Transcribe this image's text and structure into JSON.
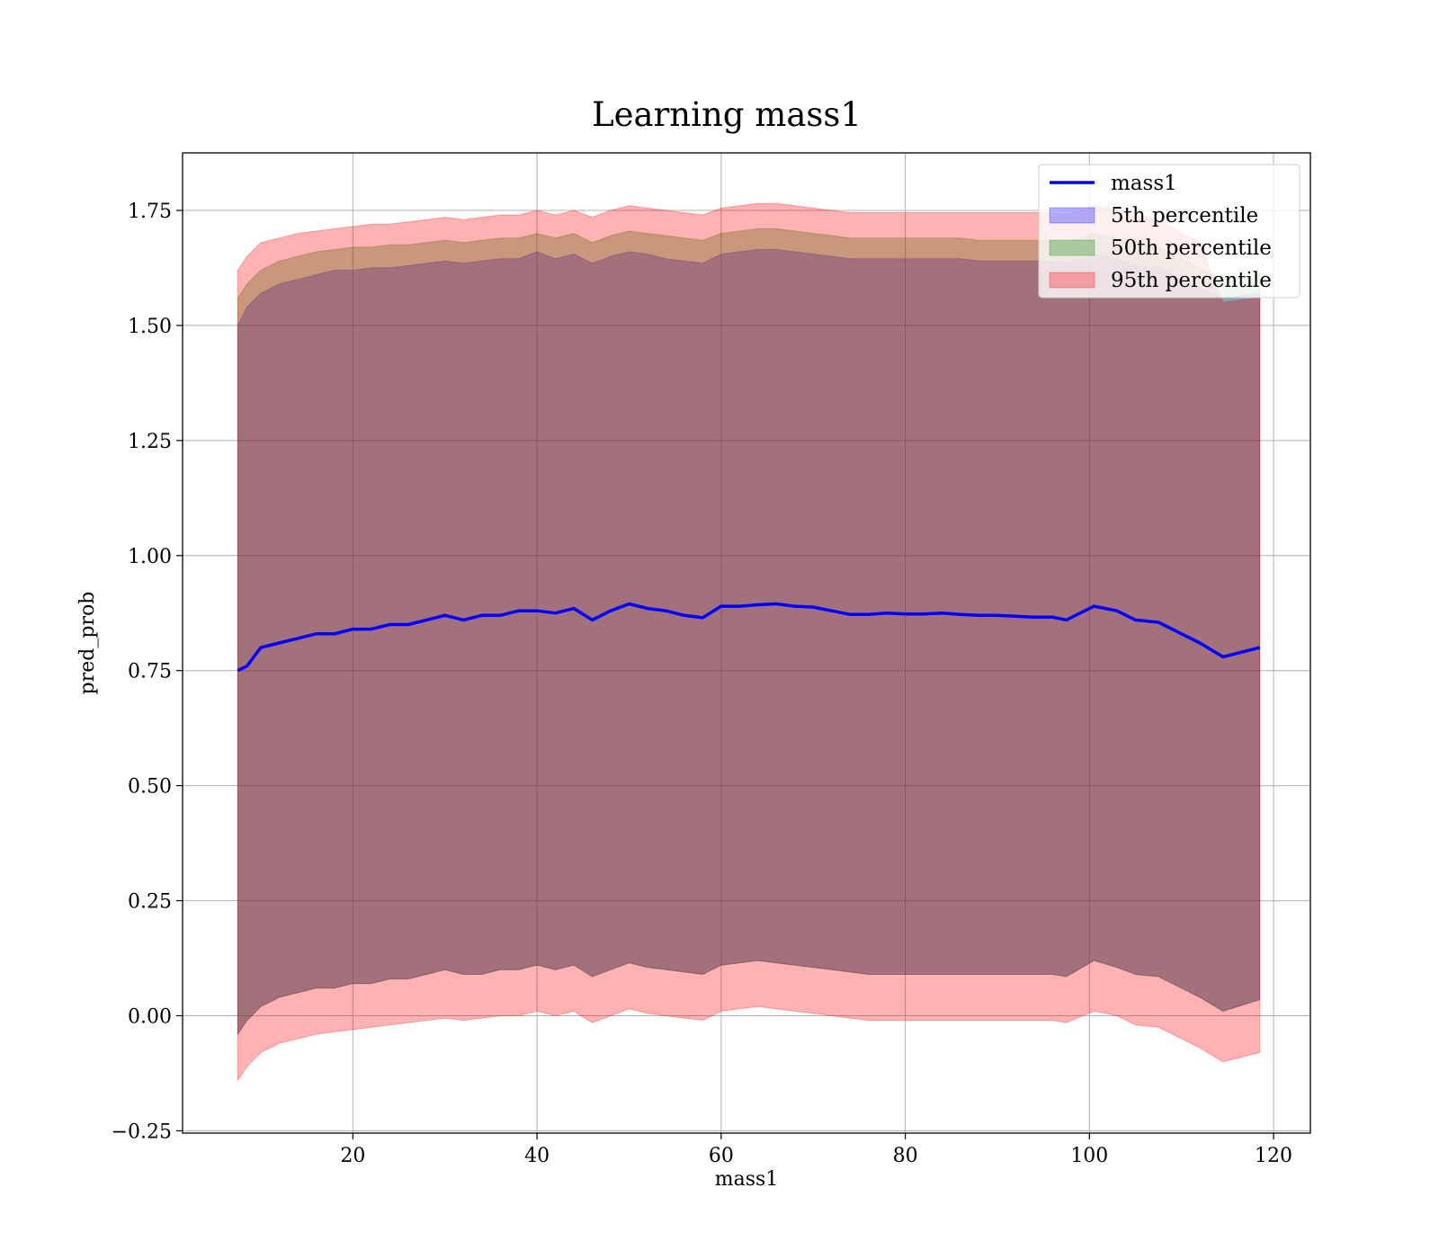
{
  "chart_data": {
    "type": "area",
    "title": "Learning mass1",
    "xlabel": "mass1",
    "ylabel": "pred_prob",
    "xlim": [
      1.5,
      124
    ],
    "ylim": [
      -0.255,
      1.875
    ],
    "x_ticks": [
      20,
      40,
      60,
      80,
      100,
      120
    ],
    "x_tick_labels": [
      "20",
      "40",
      "60",
      "80",
      "100",
      "120"
    ],
    "y_ticks": [
      -0.25,
      0.0,
      0.25,
      0.5,
      0.75,
      1.0,
      1.25,
      1.5,
      1.75
    ],
    "y_tick_labels": [
      "−0.25",
      "0.00",
      "0.25",
      "0.50",
      "0.75",
      "1.00",
      "1.25",
      "1.50",
      "1.75"
    ],
    "grid": true,
    "legend_position": "top-right",
    "colors": {
      "line": "#0000ff",
      "band5": "#0000ff",
      "band50": "#008000",
      "band95": "#ff0000"
    },
    "x": [
      7.5,
      8.5,
      10,
      12,
      14,
      16,
      18,
      20,
      22,
      24,
      26,
      28,
      30,
      32,
      34,
      36,
      38,
      40,
      42,
      44,
      46,
      48,
      50,
      52,
      54,
      56,
      58,
      60,
      62,
      64,
      66,
      68,
      70,
      72,
      74,
      76,
      78,
      80,
      82,
      84,
      86,
      88,
      90,
      92,
      94,
      96,
      97.5,
      100.5,
      103,
      105,
      107.5,
      110,
      112,
      114.5,
      118.5
    ],
    "series": [
      {
        "name": "mass1",
        "kind": "line",
        "values": [
          0.75,
          0.76,
          0.8,
          0.81,
          0.82,
          0.83,
          0.83,
          0.84,
          0.84,
          0.85,
          0.85,
          0.86,
          0.87,
          0.86,
          0.87,
          0.87,
          0.88,
          0.88,
          0.875,
          0.885,
          0.86,
          0.88,
          0.895,
          0.885,
          0.88,
          0.87,
          0.865,
          0.89,
          0.89,
          0.893,
          0.895,
          0.89,
          0.888,
          0.88,
          0.872,
          0.872,
          0.875,
          0.873,
          0.873,
          0.875,
          0.872,
          0.87,
          0.87,
          0.868,
          0.866,
          0.866,
          0.86,
          0.89,
          0.88,
          0.86,
          0.855,
          0.83,
          0.81,
          0.78,
          0.8
        ]
      },
      {
        "name": "5th percentile",
        "kind": "band",
        "upper": [
          1.5,
          1.54,
          1.57,
          1.59,
          1.6,
          1.61,
          1.62,
          1.62,
          1.625,
          1.625,
          1.63,
          1.635,
          1.64,
          1.635,
          1.64,
          1.645,
          1.645,
          1.66,
          1.645,
          1.655,
          1.635,
          1.65,
          1.66,
          1.655,
          1.645,
          1.64,
          1.635,
          1.655,
          1.66,
          1.665,
          1.665,
          1.66,
          1.655,
          1.65,
          1.645,
          1.645,
          1.645,
          1.645,
          1.645,
          1.645,
          1.645,
          1.64,
          1.64,
          1.64,
          1.64,
          1.64,
          1.635,
          1.655,
          1.645,
          1.63,
          1.625,
          1.6,
          1.58,
          1.56,
          1.57
        ],
        "lower": [
          -0.04,
          -0.01,
          0.02,
          0.04,
          0.05,
          0.06,
          0.06,
          0.07,
          0.07,
          0.08,
          0.08,
          0.09,
          0.1,
          0.09,
          0.09,
          0.1,
          0.1,
          0.11,
          0.1,
          0.11,
          0.085,
          0.1,
          0.115,
          0.105,
          0.1,
          0.095,
          0.09,
          0.11,
          0.115,
          0.12,
          0.115,
          0.11,
          0.105,
          0.1,
          0.095,
          0.09,
          0.09,
          0.09,
          0.09,
          0.09,
          0.09,
          0.09,
          0.09,
          0.09,
          0.09,
          0.09,
          0.085,
          0.12,
          0.105,
          0.09,
          0.085,
          0.06,
          0.04,
          0.01,
          0.035
        ]
      },
      {
        "name": "50th percentile",
        "kind": "band",
        "upper": [
          1.56,
          1.59,
          1.62,
          1.64,
          1.65,
          1.66,
          1.665,
          1.67,
          1.67,
          1.675,
          1.675,
          1.68,
          1.685,
          1.68,
          1.685,
          1.69,
          1.69,
          1.7,
          1.69,
          1.7,
          1.68,
          1.695,
          1.705,
          1.7,
          1.695,
          1.69,
          1.685,
          1.7,
          1.705,
          1.71,
          1.71,
          1.705,
          1.7,
          1.695,
          1.69,
          1.69,
          1.69,
          1.69,
          1.69,
          1.69,
          1.69,
          1.685,
          1.685,
          1.685,
          1.685,
          1.685,
          1.68,
          1.7,
          1.69,
          1.675,
          1.67,
          1.645,
          1.625,
          1.6,
          1.61
        ]
      },
      {
        "name": "95th percentile",
        "kind": "band",
        "upper": [
          1.62,
          1.65,
          1.68,
          1.69,
          1.7,
          1.705,
          1.71,
          1.715,
          1.72,
          1.72,
          1.725,
          1.73,
          1.735,
          1.73,
          1.735,
          1.74,
          1.74,
          1.75,
          1.74,
          1.75,
          1.735,
          1.75,
          1.76,
          1.755,
          1.75,
          1.745,
          1.74,
          1.755,
          1.76,
          1.765,
          1.765,
          1.76,
          1.755,
          1.75,
          1.745,
          1.745,
          1.745,
          1.745,
          1.745,
          1.745,
          1.745,
          1.745,
          1.745,
          1.745,
          1.745,
          1.745,
          1.74,
          1.76,
          1.75,
          1.735,
          1.73,
          1.7,
          1.68,
          1.55,
          1.56
        ],
        "lower": [
          -0.14,
          -0.11,
          -0.08,
          -0.06,
          -0.05,
          -0.04,
          -0.035,
          -0.03,
          -0.025,
          -0.02,
          -0.015,
          -0.01,
          -0.005,
          -0.01,
          -0.005,
          0.0,
          0.0,
          0.01,
          0.0,
          0.01,
          -0.015,
          0.0,
          0.015,
          0.005,
          0.0,
          -0.005,
          -0.01,
          0.01,
          0.015,
          0.02,
          0.015,
          0.01,
          0.005,
          0.0,
          -0.005,
          -0.01,
          -0.01,
          -0.01,
          -0.01,
          -0.01,
          -0.01,
          -0.01,
          -0.01,
          -0.01,
          -0.01,
          -0.01,
          -0.015,
          0.01,
          0.0,
          -0.02,
          -0.025,
          -0.05,
          -0.07,
          -0.1,
          -0.08
        ]
      }
    ]
  }
}
